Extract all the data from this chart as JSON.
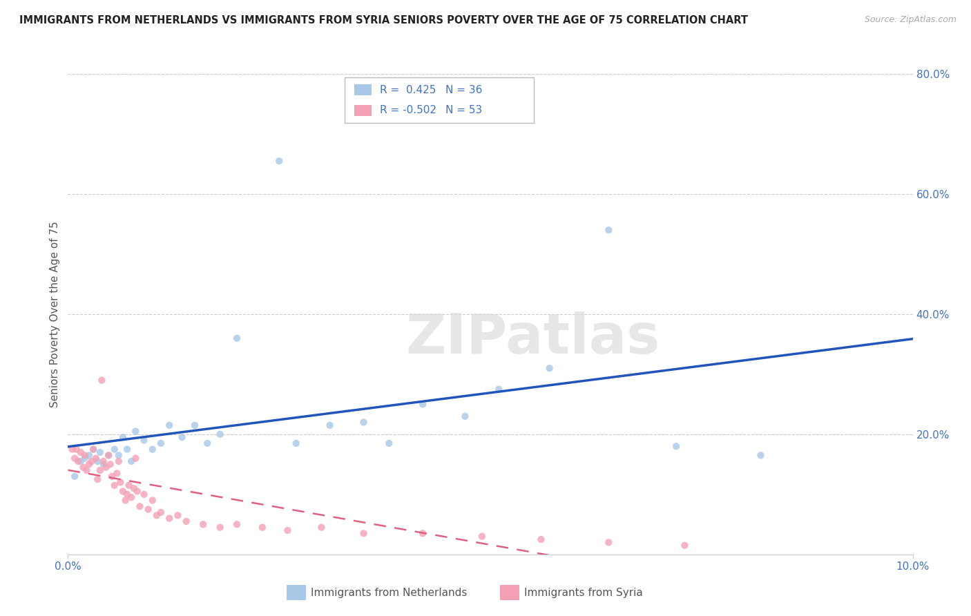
{
  "title": "IMMIGRANTS FROM NETHERLANDS VS IMMIGRANTS FROM SYRIA SENIORS POVERTY OVER THE AGE OF 75 CORRELATION CHART",
  "source": "Source: ZipAtlas.com",
  "ylabel": "Seniors Poverty Over the Age of 75",
  "xlim": [
    0,
    0.1
  ],
  "ylim": [
    0,
    0.8
  ],
  "background_color": "#ffffff",
  "watermark_text": "ZIPatlas",
  "legend_r_nl": "0.425",
  "legend_n_nl": "36",
  "legend_r_sy": "-0.502",
  "legend_n_sy": "53",
  "nl_color": "#a8c8e8",
  "sy_color": "#f4a0b4",
  "nl_line_color": "#2255bb",
  "sy_line_color": "#e06080",
  "nl_x": [
    0.0008,
    0.0015,
    0.002,
    0.0025,
    0.003,
    0.0035,
    0.0038,
    0.0042,
    0.0048,
    0.0055,
    0.006,
    0.0065,
    0.007,
    0.0075,
    0.008,
    0.009,
    0.01,
    0.011,
    0.012,
    0.0135,
    0.015,
    0.0165,
    0.018,
    0.02,
    0.025,
    0.027,
    0.031,
    0.035,
    0.038,
    0.042,
    0.047,
    0.051,
    0.057,
    0.064,
    0.072,
    0.082
  ],
  "nl_y": [
    0.13,
    0.155,
    0.16,
    0.165,
    0.175,
    0.155,
    0.17,
    0.15,
    0.165,
    0.175,
    0.165,
    0.195,
    0.175,
    0.155,
    0.205,
    0.19,
    0.175,
    0.185,
    0.215,
    0.195,
    0.215,
    0.185,
    0.2,
    0.36,
    0.655,
    0.185,
    0.215,
    0.22,
    0.185,
    0.25,
    0.23,
    0.275,
    0.31,
    0.54,
    0.18,
    0.165
  ],
  "sy_x": [
    0.0005,
    0.0008,
    0.001,
    0.0012,
    0.0015,
    0.0018,
    0.002,
    0.0022,
    0.0025,
    0.0028,
    0.003,
    0.0033,
    0.0035,
    0.0038,
    0.004,
    0.0042,
    0.0045,
    0.0048,
    0.005,
    0.0052,
    0.0055,
    0.0058,
    0.006,
    0.0062,
    0.0065,
    0.0068,
    0.007,
    0.0072,
    0.0075,
    0.0078,
    0.008,
    0.0082,
    0.0085,
    0.009,
    0.0095,
    0.01,
    0.0105,
    0.011,
    0.012,
    0.013,
    0.014,
    0.016,
    0.018,
    0.02,
    0.023,
    0.026,
    0.03,
    0.035,
    0.042,
    0.049,
    0.056,
    0.064,
    0.073
  ],
  "sy_y": [
    0.175,
    0.16,
    0.175,
    0.155,
    0.17,
    0.145,
    0.165,
    0.14,
    0.15,
    0.155,
    0.175,
    0.16,
    0.125,
    0.14,
    0.29,
    0.155,
    0.145,
    0.165,
    0.15,
    0.13,
    0.115,
    0.135,
    0.155,
    0.12,
    0.105,
    0.09,
    0.1,
    0.115,
    0.095,
    0.11,
    0.16,
    0.105,
    0.08,
    0.1,
    0.075,
    0.09,
    0.065,
    0.07,
    0.06,
    0.065,
    0.055,
    0.05,
    0.045,
    0.05,
    0.045,
    0.04,
    0.045,
    0.035,
    0.035,
    0.03,
    0.025,
    0.02,
    0.015
  ]
}
